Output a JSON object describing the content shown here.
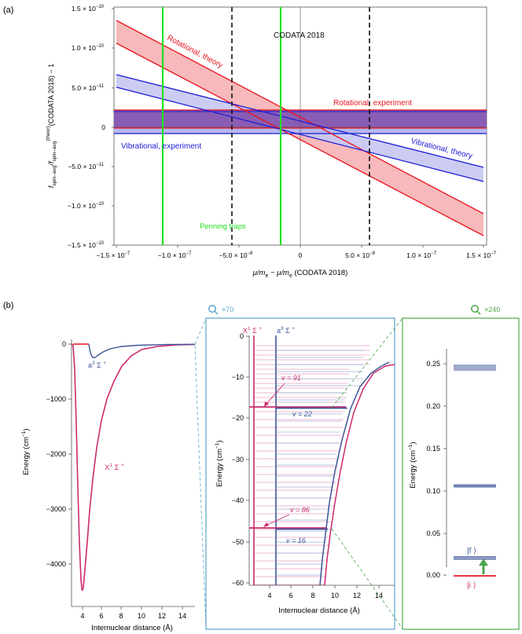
{
  "panel_labels": {
    "a": "(a)",
    "b": "(b)"
  },
  "panel_a": {
    "ylabel_pre": "f",
    "ylabel_sub1": "spin–avg",
    "ylabel_mid": "/f",
    "ylabel_sub2": "spin–avg",
    "ylabel_sup2": "(theor)",
    "ylabel_post": "(CODATA 2018) − 1",
    "xlabel_a": "μ/m",
    "xlabel_b": "e",
    "xlabel_c": " − μ/m",
    "xlabel_d": "e",
    "xlabel_e": " (CODATA 2018)",
    "yticks": [
      {
        "m": "1.5 × 10",
        "e": "−10"
      },
      {
        "m": "1.0 × 10",
        "e": "−10"
      },
      {
        "m": "5.0 × 10",
        "e": "−11"
      },
      {
        "m": "0",
        "e": ""
      },
      {
        "m": "−5.0 × 10",
        "e": "−11"
      },
      {
        "m": "−1.0 × 10",
        "e": "−10"
      },
      {
        "m": "−1.5 × 10",
        "e": "−10"
      }
    ],
    "xticks": [
      {
        "m": "−1.5 × 10",
        "e": "−7"
      },
      {
        "m": "−1.0 × 10",
        "e": "−7"
      },
      {
        "m": "−5.0 × 10",
        "e": "−8"
      },
      {
        "m": "0",
        "e": ""
      },
      {
        "m": "5.0 × 10",
        "e": "−8"
      },
      {
        "m": "1.0 × 10",
        "e": "−7"
      },
      {
        "m": "1.5 × 10",
        "e": "−7"
      }
    ],
    "labels": {
      "codata": "CODATA 2018",
      "rot_theory": "Rotational, theory",
      "rot_exp": "Rotational, experiment",
      "vib_exp": "Vibrational, experiment",
      "vib_theory": "Vibrational, theory",
      "penning": "Penning traps"
    }
  },
  "panel_b1": {
    "yticks": [
      "0",
      "−1000",
      "−2000",
      "−3000",
      "−4000"
    ],
    "xticks": [
      "4",
      "6",
      "8",
      "10",
      "12",
      "14"
    ],
    "ylabel": "Energy (cm−1)",
    "ylabel_main": "Energy (cm",
    "ylabel_exp": "−1",
    "ylabel_end": ")",
    "xlabel": "Internuclear distance (Å)",
    "a_state": {
      "m": "a",
      "s": "3",
      "sym": " Σ ",
      "p": "+"
    },
    "x_state": {
      "m": "X",
      "s": "1",
      "sym": " Σ ",
      "p": "+"
    }
  },
  "panel_b2": {
    "zoom": "×70",
    "yticks": [
      "0",
      "−10",
      "−20",
      "−30",
      "−40",
      "−50",
      "−60"
    ],
    "xticks": [
      "4",
      "6",
      "8",
      "10",
      "12",
      "14"
    ],
    "ylabel_main": "Energy (cm",
    "ylabel_exp": "−1",
    "ylabel_end": ")",
    "xlabel": "Internuclear distance (Å)",
    "x_state": {
      "m": "X",
      "s": "1",
      "sym": " Σ ",
      "p": "+"
    },
    "a_state": {
      "m": "a",
      "s": "3",
      "sym": " Σ ",
      "p": "+"
    },
    "v91": "v = 91",
    "v22": "v = 22",
    "v86": "v = 86",
    "v16": "v = 16"
  },
  "panel_b3": {
    "zoom": "×240",
    "yticks": [
      "0.25",
      "0.20",
      "0.15",
      "0.10",
      "0.05",
      "0.00"
    ],
    "ylabel_main": "Energy (cm",
    "ylabel_exp": "−1",
    "ylabel_end": ")",
    "f_label": "|f ⟩",
    "i_label": "|i ⟩"
  },
  "colors": {
    "red": "#e8141e",
    "red_fill": "#f7b9bb",
    "blue": "#1b1bd6",
    "blue_fill": "#c6c6f2",
    "purple_fill": "#7b3fa0",
    "green": "#22e022",
    "magenta": "#cc2a6e",
    "navy": "#3d5599",
    "lightblue": "#5aa4cc",
    "box_green": "#4ca64c"
  }
}
